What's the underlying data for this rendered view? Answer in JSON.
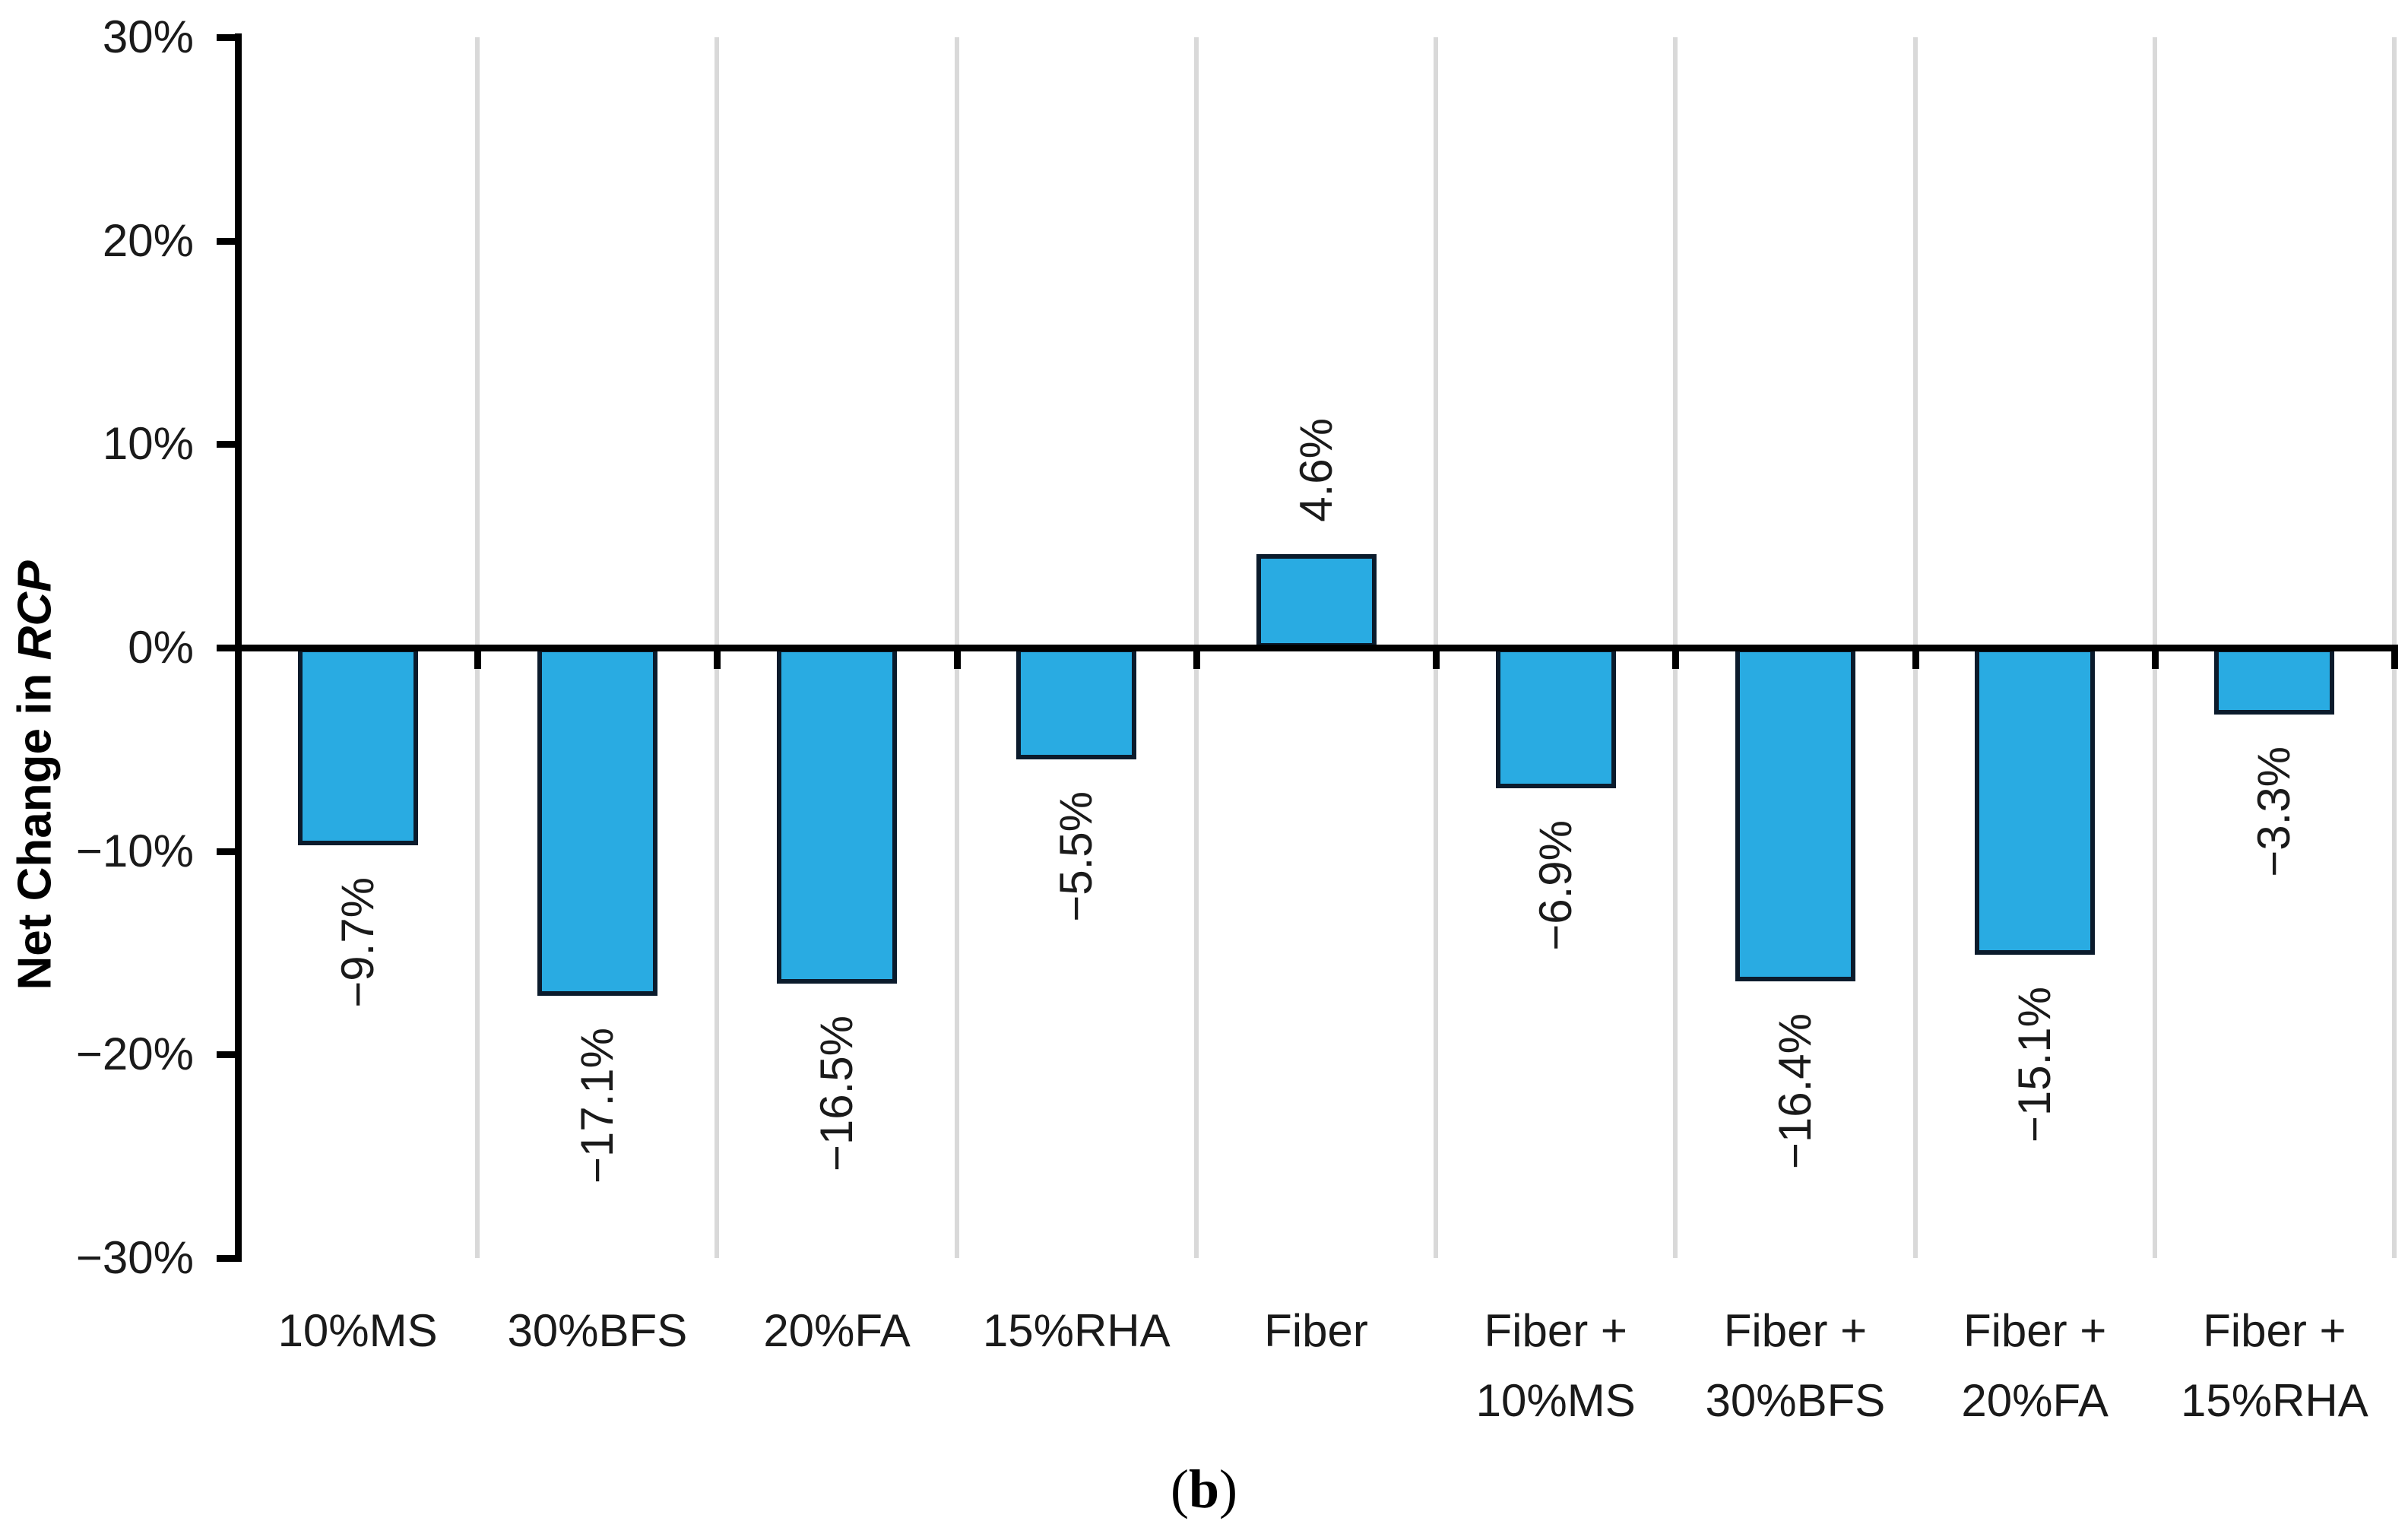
{
  "figure": {
    "caption_open": "(",
    "caption_letter": "b",
    "caption_close": ")"
  },
  "y_axis": {
    "title_main": "Net Change in ",
    "title_emph": "RCP",
    "ticks": [
      {
        "label": "30%",
        "value": 30
      },
      {
        "label": "20%",
        "value": 20
      },
      {
        "label": "10%",
        "value": 10
      },
      {
        "label": "0%",
        "value": 0
      },
      {
        "label": "−10%",
        "value": -10
      },
      {
        "label": "−20%",
        "value": -20
      },
      {
        "label": "−30%",
        "value": -30
      }
    ]
  },
  "chart_data": {
    "type": "bar",
    "title": "",
    "xlabel": "",
    "ylabel": "Net Change in RCP",
    "ylim": [
      -30,
      30
    ],
    "ytick_step": 10,
    "grid": "vertical-category-separators",
    "legend_position": "none",
    "categories": [
      "10%MS",
      "30%BFS",
      "20%FA",
      "15%RHA",
      "Fiber",
      "Fiber + 10%MS",
      "Fiber + 30%BFS",
      "Fiber + 20%FA",
      "Fiber + 15%RHA"
    ],
    "category_lines": [
      [
        "10%MS"
      ],
      [
        "30%BFS"
      ],
      [
        "20%FA"
      ],
      [
        "15%RHA"
      ],
      [
        "Fiber"
      ],
      [
        "Fiber +",
        "10%MS"
      ],
      [
        "Fiber +",
        "30%BFS"
      ],
      [
        "Fiber +",
        "20%FA"
      ],
      [
        "Fiber +",
        "15%RHA"
      ]
    ],
    "values": [
      -9.7,
      -17.1,
      -16.5,
      -5.5,
      4.6,
      -6.9,
      -16.4,
      -15.1,
      -3.3
    ],
    "data_labels": [
      "−9.7%",
      "−17.1%",
      "−16.5%",
      "−5.5%",
      "4.6%",
      "−6.9%",
      "−16.4%",
      "−15.1%",
      "−3.3%"
    ],
    "colors": {
      "bar_fill": "#29ABE2",
      "bar_border": "#0B1B2C",
      "gridline": "#D9D9D9",
      "axis": "#000000",
      "text": "#1A1A1A"
    }
  }
}
